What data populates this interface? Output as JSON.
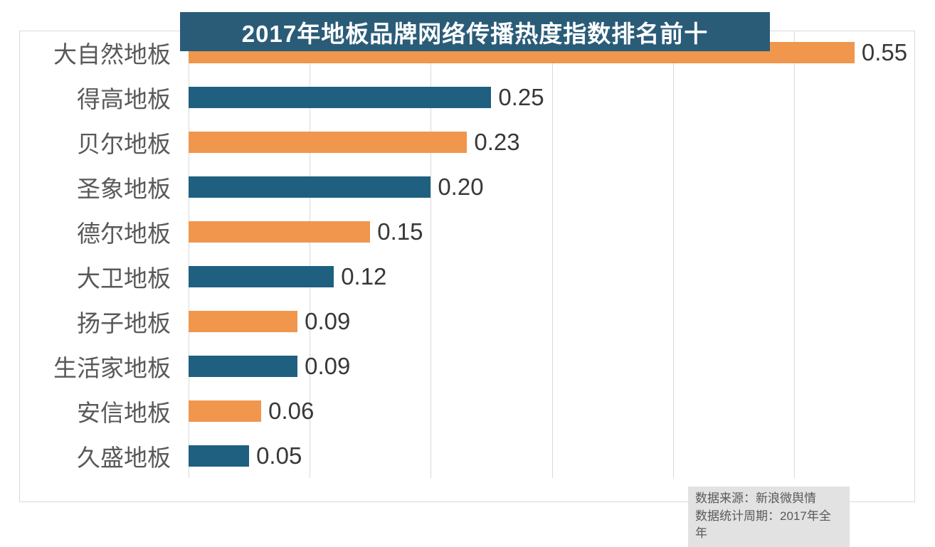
{
  "title": "2017年地板品牌网络传播热度指数排名前十",
  "source_note": {
    "line1": "数据来源：新浪微舆情",
    "line2": "数据统计周期：2017年全年"
  },
  "colors": {
    "banner_bg": "#2a5c78",
    "bar_orange": "#f0964d",
    "bar_teal": "#1f5f80",
    "category_label": "#595959",
    "value_label": "#383838",
    "gridline": "#d9d9d9",
    "note_bg": "#e2e2e2",
    "note_text": "#595959"
  },
  "chart_data": {
    "type": "bar",
    "orientation": "horizontal",
    "title": "2017年地板品牌网络传播热度指数排名前十",
    "categories": [
      "大自然地板",
      "得高地板",
      "贝尔地板",
      "圣象地板",
      "德尔地板",
      "大卫地板",
      "扬子地板",
      "生活家地板",
      "安信地板",
      "久盛地板"
    ],
    "values": [
      0.55,
      0.25,
      0.23,
      0.2,
      0.15,
      0.12,
      0.09,
      0.09,
      0.06,
      0.05
    ],
    "value_labels": [
      "0.55",
      "0.25",
      "0.23",
      "0.20",
      "0.15",
      "0.12",
      "0.09",
      "0.09",
      "0.06",
      "0.05"
    ],
    "bar_color_pattern": [
      "#f0964d",
      "#1f5f80"
    ],
    "xlim": [
      0,
      0.6
    ],
    "grid_interval": 0.1,
    "grid": true,
    "legend": false,
    "xlabel": "",
    "ylabel": ""
  }
}
